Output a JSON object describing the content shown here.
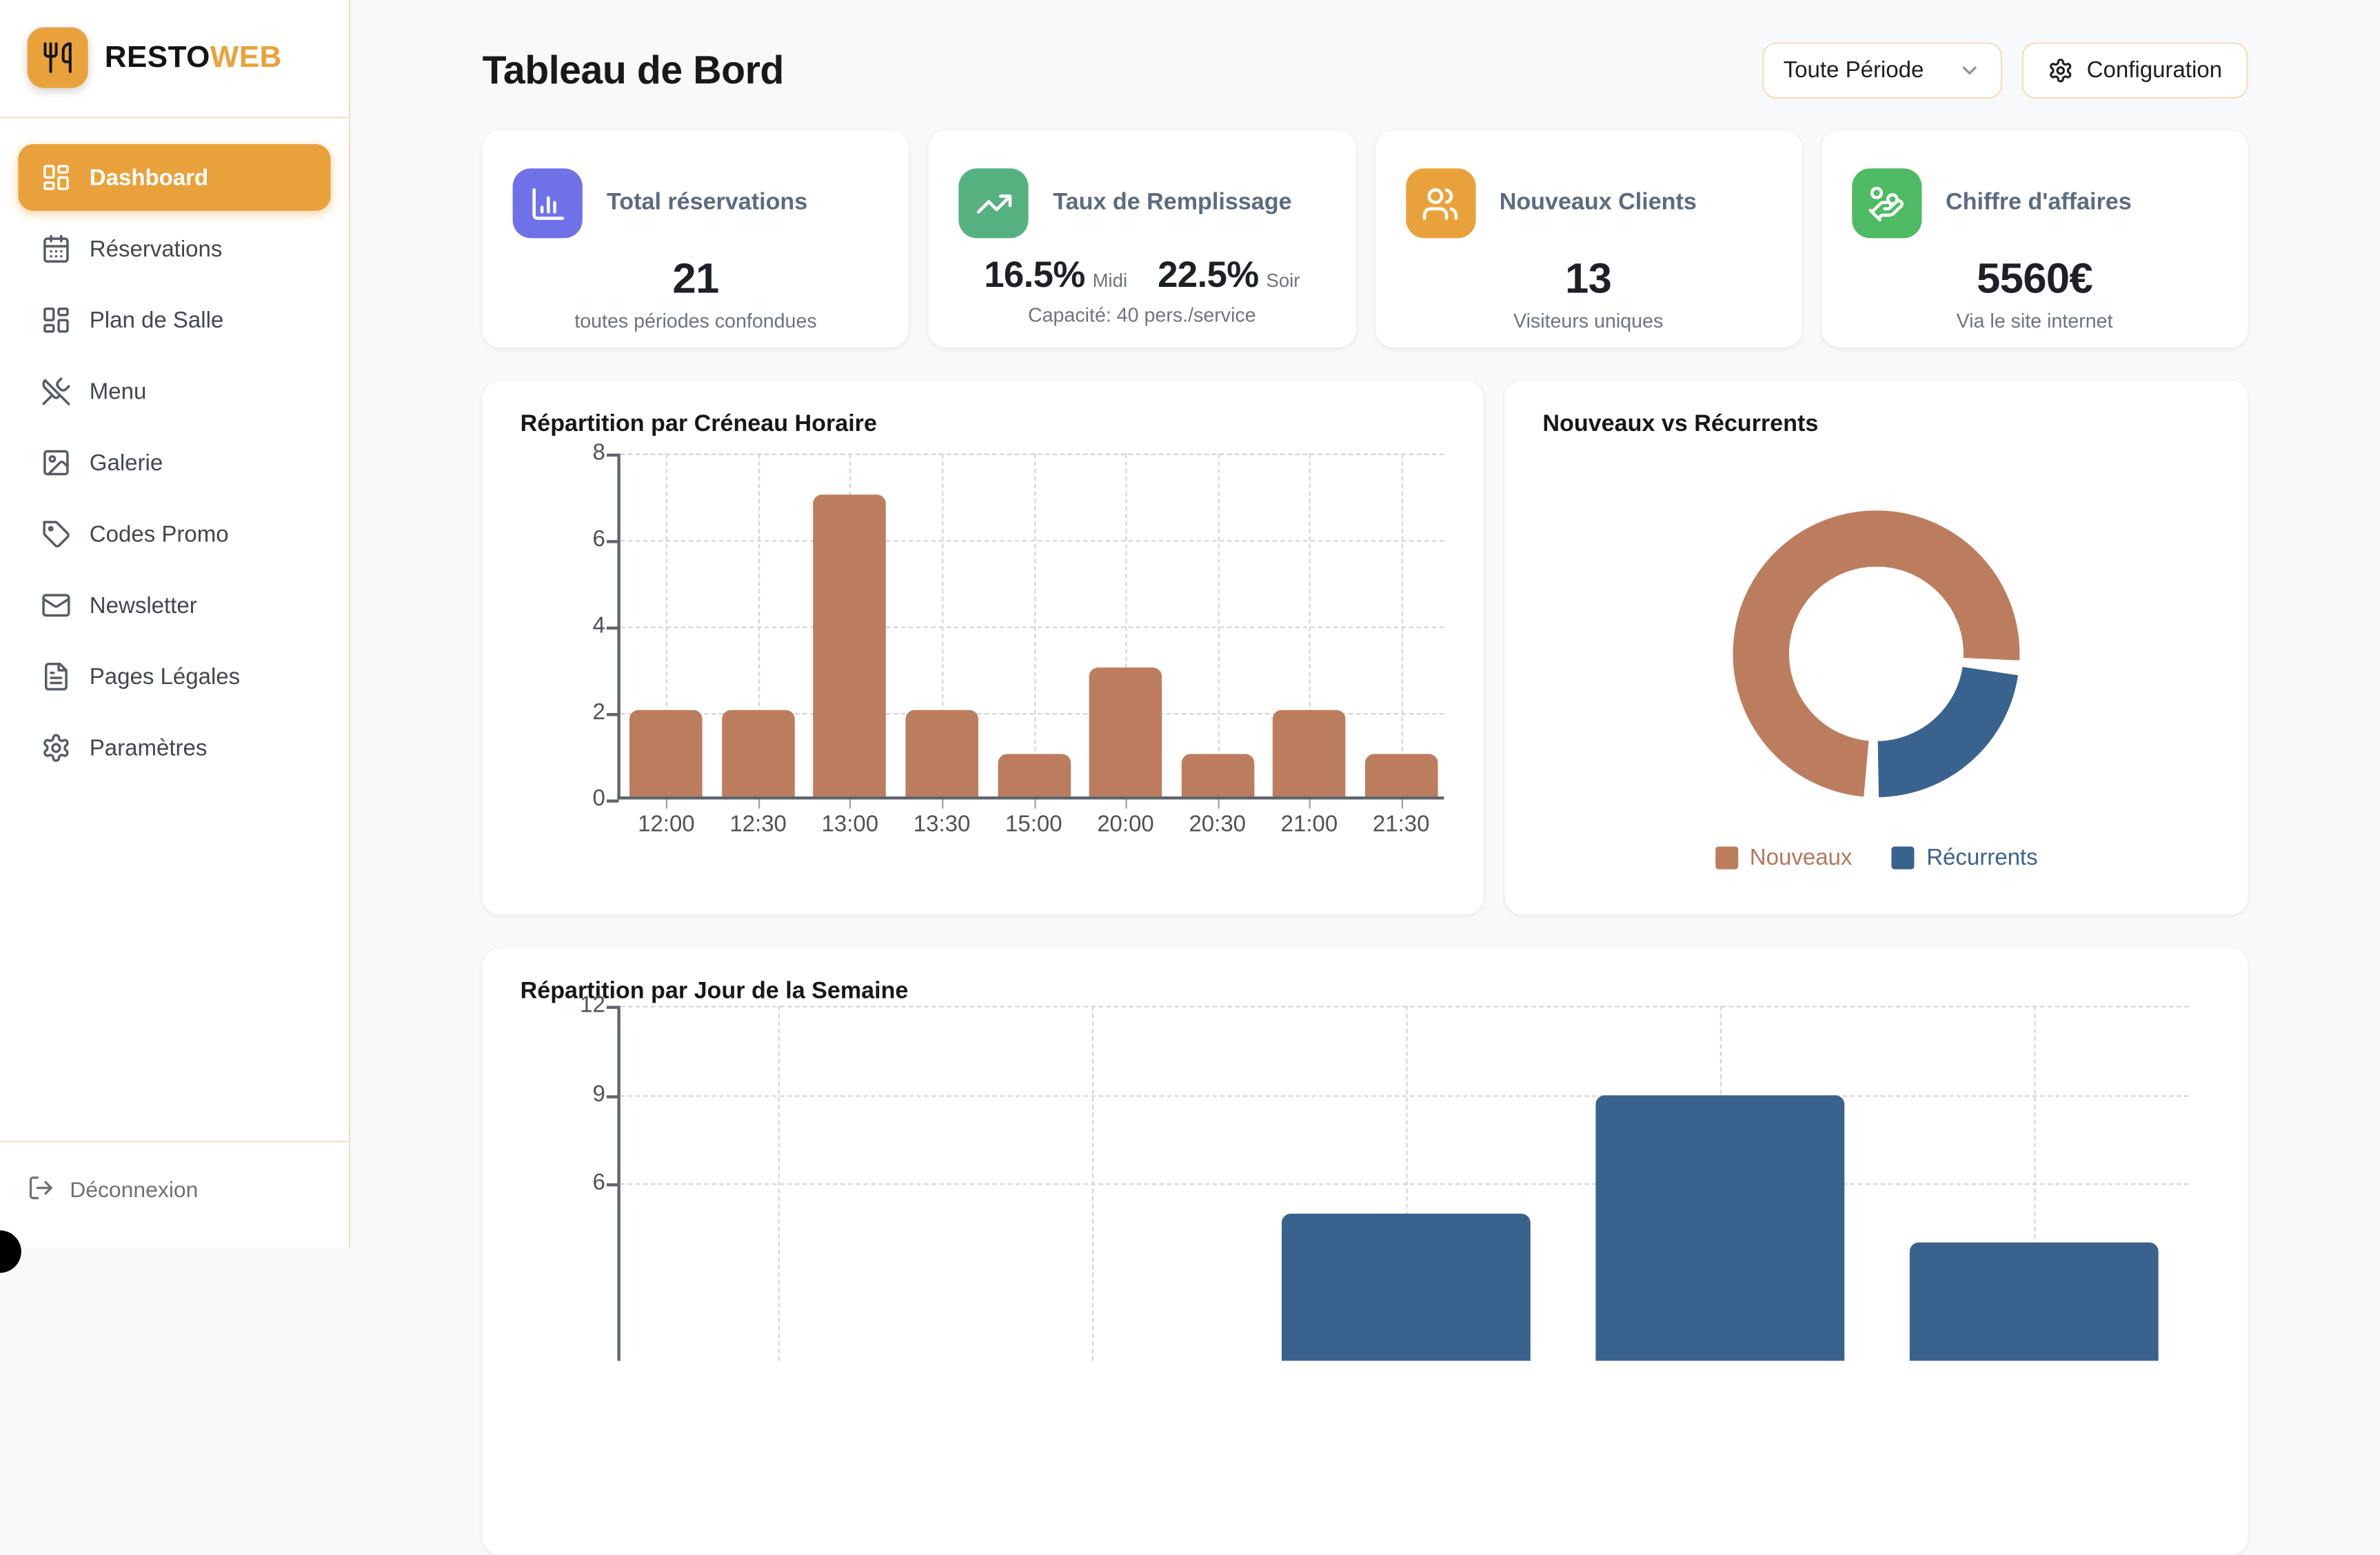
{
  "brand": {
    "name_primary": "RESTO",
    "name_accent": "WEB",
    "logo_icon": "utensils"
  },
  "colors": {
    "accent_orange": "#e9a23b",
    "border_tan": "#f0e0c5",
    "bar_brown": "#bc7d5e",
    "bar_blue": "#3a628f",
    "icon_indigo": "#6f71e9",
    "icon_green": "#56b181",
    "icon_orange": "#e9a23b",
    "icon_green_bright": "#4eba63"
  },
  "sidebar": {
    "items": [
      {
        "label": "Dashboard",
        "icon": "layout-dashboard",
        "active": true
      },
      {
        "label": "Réservations",
        "icon": "calendar-days",
        "active": false
      },
      {
        "label": "Plan de Salle",
        "icon": "layout-dashboard",
        "active": false
      },
      {
        "label": "Menu",
        "icon": "utensils-crossed",
        "active": false
      },
      {
        "label": "Galerie",
        "icon": "image",
        "active": false
      },
      {
        "label": "Codes Promo",
        "icon": "tag",
        "active": false
      },
      {
        "label": "Newsletter",
        "icon": "mail",
        "active": false
      },
      {
        "label": "Pages Légales",
        "icon": "file-text",
        "active": false
      },
      {
        "label": "Paramètres",
        "icon": "settings",
        "active": false
      }
    ],
    "logout": {
      "label": "Déconnexion",
      "icon": "log-out"
    }
  },
  "header": {
    "title": "Tableau de Bord",
    "period_selector": {
      "value": "Toute Période",
      "icon": "chevron-down"
    },
    "config_button": {
      "label": "Configuration",
      "icon": "settings"
    }
  },
  "stats": [
    {
      "label": "Total réservations",
      "icon": "chart-column",
      "color": "#6f71e9",
      "value": "21",
      "subtitle": "toutes périodes confondues"
    },
    {
      "label": "Taux de Remplissage",
      "icon": "trending-up",
      "color": "#56b181",
      "values": [
        {
          "value": "16.5%",
          "suffix": "Midi"
        },
        {
          "value": "22.5%",
          "suffix": "Soir"
        }
      ],
      "subtitle": "Capacité: 40 pers./service"
    },
    {
      "label": "Nouveaux Clients",
      "icon": "users",
      "color": "#e9a23b",
      "value": "13",
      "subtitle": "Visiteurs uniques"
    },
    {
      "label": "Chiffre d'affaires",
      "icon": "hand-coins",
      "color": "#4eba63",
      "value": "5560€",
      "subtitle": "Via le site internet"
    }
  ],
  "chart_data": [
    {
      "type": "bar",
      "title": "Répartition par Créneau Horaire",
      "categories": [
        "12:00",
        "12:30",
        "13:00",
        "13:30",
        "15:00",
        "20:00",
        "20:30",
        "21:00",
        "21:30"
      ],
      "values": [
        2,
        2,
        7,
        2,
        1,
        3,
        1,
        2,
        1
      ],
      "xlabel": "",
      "ylabel": "",
      "ylim": [
        0,
        8
      ],
      "yticks": [
        8,
        6,
        4,
        2,
        0
      ],
      "color": "#bc7d5e",
      "grid": "dashed"
    },
    {
      "type": "pie",
      "donut": true,
      "title": "Nouveaux vs Récurrents",
      "labels": [
        "Nouveaux",
        "Récurrents"
      ],
      "values_pct": [
        76,
        24
      ],
      "colors": [
        "#bc7d5e",
        "#3a628f"
      ],
      "legend_position": "bottom"
    },
    {
      "type": "bar",
      "title": "Répartition par Jour de la Semaine",
      "categories": [
        "",
        "",
        "",
        "",
        ""
      ],
      "values": [
        0,
        0,
        5,
        9,
        4
      ],
      "xlabel": "",
      "ylabel": "",
      "ylim": [
        0,
        12
      ],
      "yticks": [
        12,
        9,
        6
      ],
      "color": "#3a628f",
      "grid": "dashed",
      "clipped_bottom": true
    }
  ]
}
